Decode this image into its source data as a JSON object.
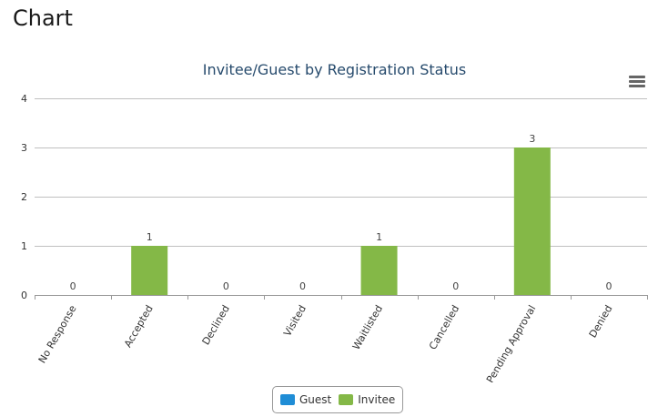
{
  "page": {
    "title": "Chart"
  },
  "chart": {
    "title": "Invitee/Guest by Registration Status",
    "menu_icon": "hamburger-menu-icon",
    "legend": [
      {
        "label": "Guest",
        "color": "#1f8dd6"
      },
      {
        "label": "Invitee",
        "color": "#84b847"
      }
    ]
  },
  "chart_data": {
    "type": "bar",
    "title": "Invitee/Guest by Registration Status",
    "xlabel": "",
    "ylabel": "",
    "categories": [
      "No Response",
      "Accepted",
      "Declined",
      "Visited",
      "Waitlisted",
      "Cancelled",
      "Pending Approval",
      "Denied"
    ],
    "series": [
      {
        "name": "Guest",
        "color": "#1f8dd6",
        "values": [
          0,
          0,
          0,
          0,
          0,
          0,
          0,
          0
        ]
      },
      {
        "name": "Invitee",
        "color": "#84b847",
        "values": [
          0,
          1,
          0,
          0,
          1,
          0,
          3,
          0
        ]
      }
    ],
    "data_labels": [
      "0",
      "1",
      "0",
      "0",
      "1",
      "0",
      "3",
      "0"
    ],
    "yticks": [
      0,
      1,
      2,
      3,
      4
    ],
    "ylim": [
      0,
      4
    ],
    "grid": true,
    "legend_position": "bottom-center"
  }
}
